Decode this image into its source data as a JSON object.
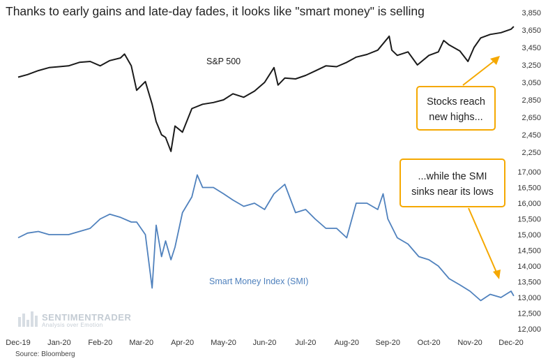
{
  "chart_data": {
    "type": "line",
    "title": "Thanks to early gains and late-day fades, it looks like \"smart money\" is selling",
    "source": "Source: Bloomberg",
    "watermark": {
      "main": "SENTIMENTRADER",
      "sub": "Analysis over Emotion"
    },
    "x_ticks": [
      "Dec-19",
      "Jan-20",
      "Feb-20",
      "Mar-20",
      "Apr-20",
      "May-20",
      "Jun-20",
      "Jul-20",
      "Aug-20",
      "Sep-20",
      "Oct-20",
      "Nov-20",
      "Dec-20"
    ],
    "top_panel": {
      "yticks": [
        "3,850",
        "3,650",
        "3,450",
        "3,250",
        "3,050",
        "2,850",
        "2,650",
        "2,450",
        "2,250"
      ],
      "ylim": [
        2250,
        3850
      ],
      "series": [
        {
          "name": "S&P 500",
          "color": "#1a1a1a",
          "x": [
            "Dec-01",
            "Dec-08",
            "Dec-16",
            "Dec-24",
            "Jan-01",
            "Jan-08",
            "Jan-16",
            "Jan-24",
            "Feb-01",
            "Feb-08",
            "Feb-16",
            "Feb-19",
            "Feb-24",
            "Feb-28",
            "Mar-04",
            "Mar-09",
            "Mar-12",
            "Mar-16",
            "Mar-19",
            "Mar-23",
            "Mar-26",
            "Apr-01",
            "Apr-08",
            "Apr-16",
            "Apr-24",
            "May-01",
            "May-08",
            "May-16",
            "May-24",
            "Jun-01",
            "Jun-08",
            "Jun-11",
            "Jun-16",
            "Jun-24",
            "Jul-01",
            "Jul-08",
            "Jul-16",
            "Jul-24",
            "Aug-01",
            "Aug-08",
            "Aug-16",
            "Aug-24",
            "Sep-01",
            "Sep-02",
            "Sep-04",
            "Sep-08",
            "Sep-16",
            "Sep-23",
            "Oct-01",
            "Oct-08",
            "Oct-12",
            "Oct-16",
            "Oct-24",
            "Oct-30",
            "Nov-04",
            "Nov-09",
            "Nov-16",
            "Nov-24",
            "Dec-01",
            "Dec-03"
          ],
          "values": [
            3110,
            3140,
            3185,
            3220,
            3230,
            3240,
            3280,
            3290,
            3240,
            3300,
            3330,
            3375,
            3240,
            2960,
            3060,
            2800,
            2600,
            2450,
            2420,
            2260,
            2550,
            2480,
            2750,
            2800,
            2820,
            2850,
            2920,
            2880,
            2950,
            3050,
            3220,
            3020,
            3100,
            3090,
            3130,
            3180,
            3240,
            3230,
            3280,
            3340,
            3370,
            3420,
            3560,
            3580,
            3420,
            3360,
            3400,
            3250,
            3360,
            3400,
            3530,
            3480,
            3410,
            3290,
            3450,
            3560,
            3600,
            3620,
            3660,
            3690
          ]
        }
      ]
    },
    "bottom_panel": {
      "yticks": [
        "17,000",
        "16,500",
        "16,000",
        "15,500",
        "15,000",
        "14,500",
        "14,000",
        "13,500",
        "13,000",
        "12,500",
        "12,000"
      ],
      "ylim": [
        12000,
        17000
      ],
      "series": [
        {
          "name": "Smart Money Index (SMI)",
          "color": "#4f81bd",
          "x": [
            "Dec-01",
            "Dec-08",
            "Dec-16",
            "Dec-24",
            "Jan-01",
            "Jan-08",
            "Jan-16",
            "Jan-24",
            "Feb-01",
            "Feb-08",
            "Feb-16",
            "Feb-24",
            "Feb-28",
            "Mar-04",
            "Mar-09",
            "Mar-12",
            "Mar-16",
            "Mar-19",
            "Mar-23",
            "Mar-26",
            "Apr-01",
            "Apr-08",
            "Apr-12",
            "Apr-16",
            "Apr-24",
            "May-01",
            "May-08",
            "May-16",
            "May-24",
            "Jun-01",
            "Jun-08",
            "Jun-16",
            "Jun-24",
            "Jul-01",
            "Jul-08",
            "Jul-16",
            "Jul-24",
            "Aug-01",
            "Aug-08",
            "Aug-16",
            "Aug-24",
            "Aug-28",
            "Sep-01",
            "Sep-08",
            "Sep-16",
            "Sep-24",
            "Oct-01",
            "Oct-08",
            "Oct-16",
            "Oct-24",
            "Nov-01",
            "Nov-09",
            "Nov-16",
            "Nov-24",
            "Dec-01",
            "Dec-03"
          ],
          "values": [
            14900,
            15050,
            15100,
            15000,
            15000,
            15000,
            15100,
            15200,
            15500,
            15650,
            15550,
            15400,
            15400,
            15000,
            13300,
            15300,
            14300,
            14800,
            14200,
            14600,
            15700,
            16200,
            16900,
            16500,
            16500,
            16300,
            16100,
            15900,
            16000,
            15800,
            16300,
            16600,
            15700,
            15800,
            15500,
            15200,
            15200,
            14900,
            16000,
            16000,
            15800,
            16300,
            15500,
            14900,
            14700,
            14300,
            14200,
            14000,
            13600,
            13400,
            13200,
            12900,
            13100,
            13000,
            13200,
            13050
          ]
        }
      ]
    },
    "callouts": [
      {
        "lines": [
          "Stocks reach",
          "new highs..."
        ]
      },
      {
        "lines": [
          "...while the SMI",
          "sinks near its lows"
        ]
      }
    ]
  }
}
